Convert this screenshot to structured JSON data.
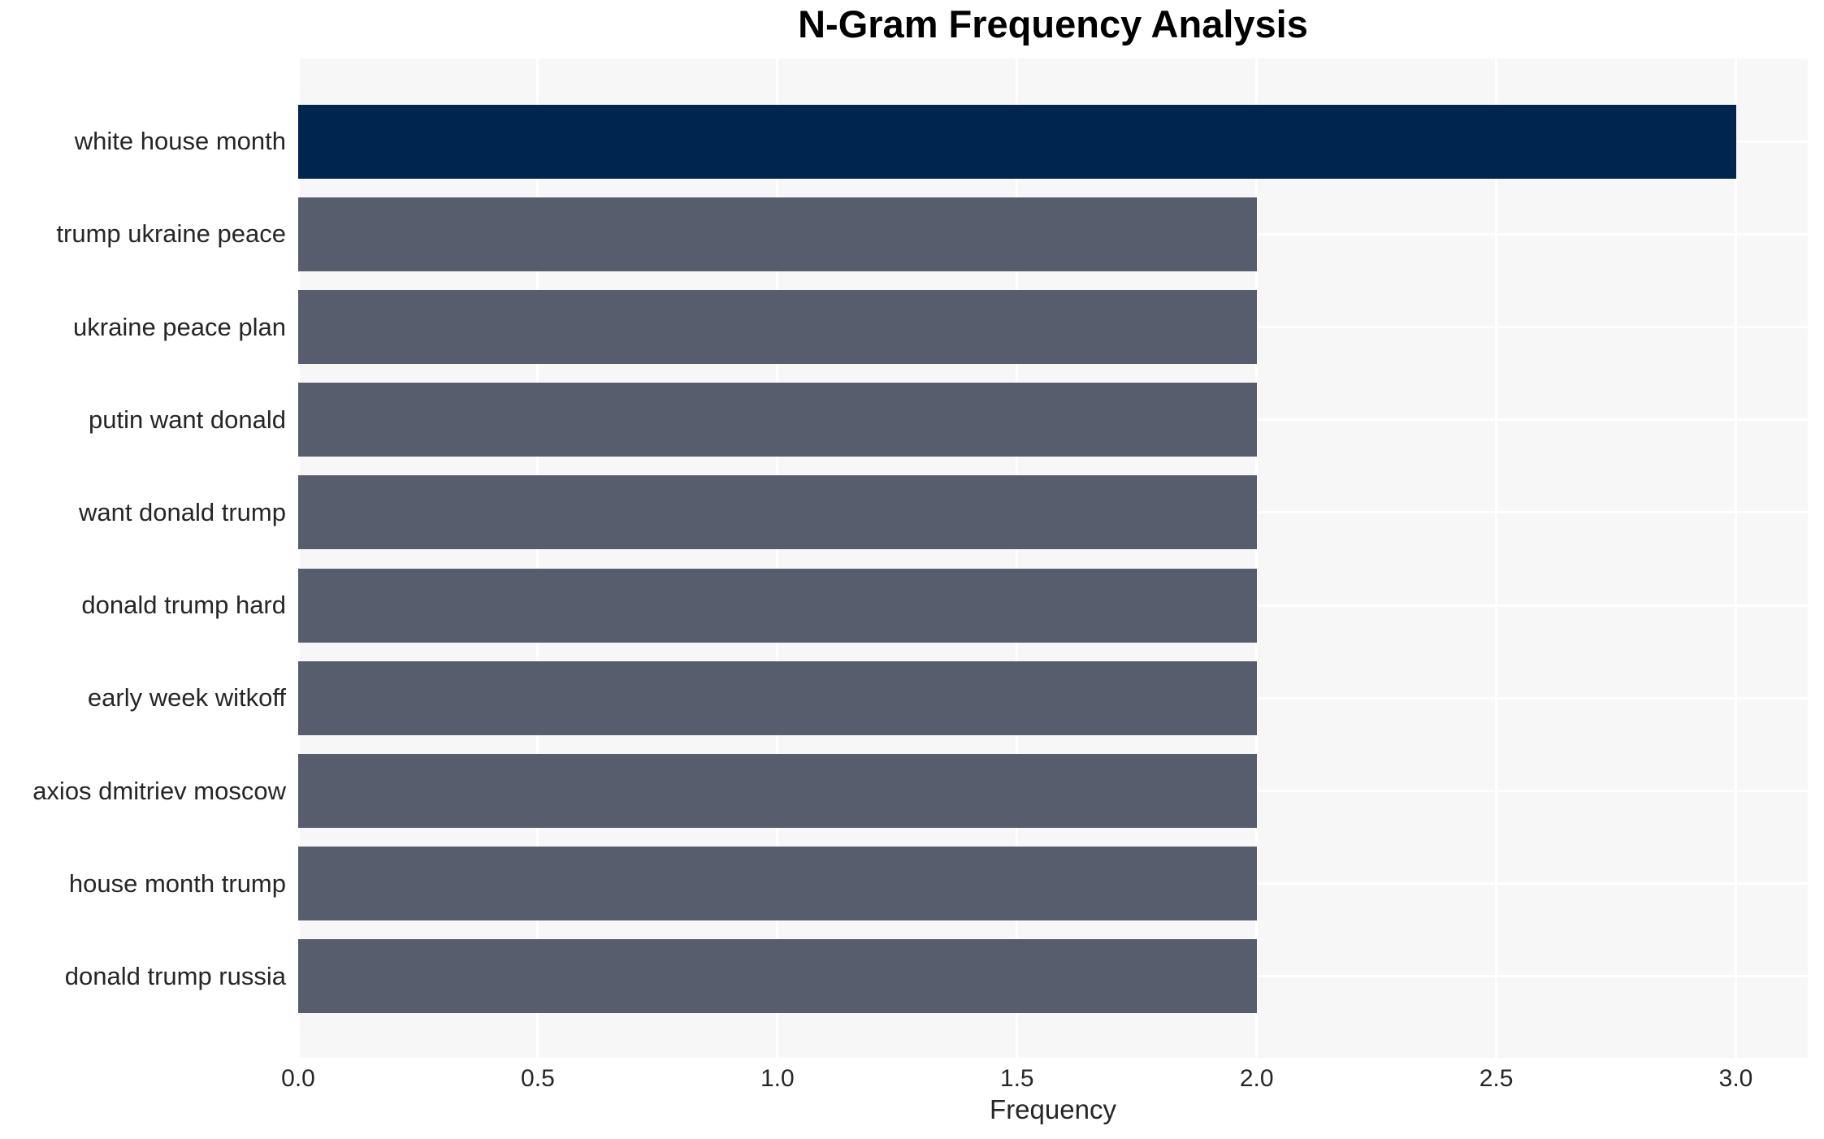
{
  "chart_data": {
    "type": "bar",
    "orientation": "horizontal",
    "title": "N-Gram Frequency Analysis",
    "xlabel": "Frequency",
    "ylabel": "",
    "categories": [
      "white house month",
      "trump ukraine peace",
      "ukraine peace plan",
      "putin want donald",
      "want donald trump",
      "donald trump hard",
      "early week witkoff",
      "axios dmitriev moscow",
      "house month trump",
      "donald trump russia"
    ],
    "values": [
      3,
      2,
      2,
      2,
      2,
      2,
      2,
      2,
      2,
      2
    ],
    "xlim": [
      0,
      3.15
    ],
    "xticks": [
      0,
      0.5,
      1,
      1.5,
      2,
      2.5,
      3
    ],
    "xtick_labels": [
      "0.0",
      "0.5",
      "1.0",
      "1.5",
      "2.0",
      "2.5",
      "3.0"
    ],
    "grid": true,
    "legend": false,
    "bar_colors": [
      "#00254e",
      "#575d6d",
      "#575d6d",
      "#575d6d",
      "#575d6d",
      "#575d6d",
      "#575d6d",
      "#575d6d",
      "#575d6d",
      "#575d6d"
    ],
    "colors": {
      "bar_primary": "#00254e",
      "bar_secondary": "#575d6d",
      "plot_background": "#f7f7f8",
      "grid_line": "#ffffff",
      "figure_background": "#ffffff",
      "text": "#262626",
      "title_text": "#000000"
    }
  }
}
